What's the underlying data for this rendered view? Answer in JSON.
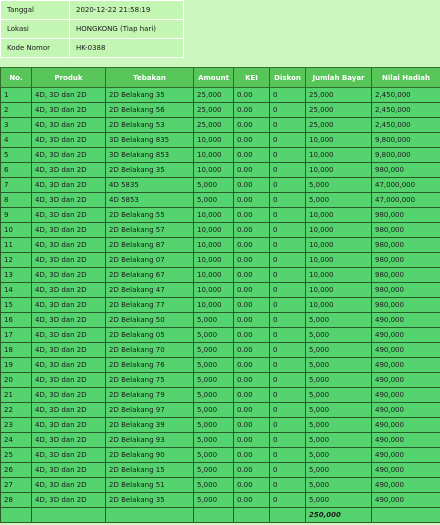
{
  "info": [
    {
      "label": "Tanggal",
      "value": "2020-12-22 21:58:19"
    },
    {
      "label": "Lokasi",
      "value": "HONGKONG (Tiap hari)"
    },
    {
      "label": "Kode Nomor",
      "value": "HK-0388"
    }
  ],
  "table": {
    "headers": [
      "No.",
      "Produk",
      "Tebakan",
      "Amount",
      "KEI",
      "Diskon",
      "Jumlah Bayar",
      "Nilai Hadiah"
    ],
    "rows": [
      [
        "1",
        "4D, 3D dan 2D",
        "2D Belakang 35",
        "25,000",
        "0.00",
        "0",
        "25,000",
        "2,450,000"
      ],
      [
        "2",
        "4D, 3D dan 2D",
        "2D Belakang 56",
        "25,000",
        "0.00",
        "0",
        "25,000",
        "2,450,000"
      ],
      [
        "3",
        "4D, 3D dan 2D",
        "2D Belakang 53",
        "25,000",
        "0.00",
        "0",
        "25,000",
        "2,450,000"
      ],
      [
        "4",
        "4D, 3D dan 2D",
        "3D Belakang 835",
        "10,000",
        "0.00",
        "0",
        "10,000",
        "9,800,000"
      ],
      [
        "5",
        "4D, 3D dan 2D",
        "3D Belakang 853",
        "10,000",
        "0.00",
        "0",
        "10,000",
        "9,800,000"
      ],
      [
        "6",
        "4D, 3D dan 2D",
        "2D Belakang 35",
        "10,000",
        "0.00",
        "0",
        "10,000",
        "980,000"
      ],
      [
        "7",
        "4D, 3D dan 2D",
        "4D 5835",
        "5,000",
        "0.00",
        "0",
        "5,000",
        "47,000,000"
      ],
      [
        "8",
        "4D, 3D dan 2D",
        "4D 5853",
        "5,000",
        "0.00",
        "0",
        "5,000",
        "47,000,000"
      ],
      [
        "9",
        "4D, 3D dan 2D",
        "2D Belakang 55",
        "10,000",
        "0.00",
        "0",
        "10,000",
        "980,000"
      ],
      [
        "10",
        "4D, 3D dan 2D",
        "2D Belakang 57",
        "10,000",
        "0.00",
        "0",
        "10,000",
        "980,000"
      ],
      [
        "11",
        "4D, 3D dan 2D",
        "2D Belakang 87",
        "10,000",
        "0.00",
        "0",
        "10,000",
        "980,000"
      ],
      [
        "12",
        "4D, 3D dan 2D",
        "2D Belakang 07",
        "10,000",
        "0.00",
        "0",
        "10,000",
        "980,000"
      ],
      [
        "13",
        "4D, 3D dan 2D",
        "2D Belakang 67",
        "10,000",
        "0.00",
        "0",
        "10,000",
        "980,000"
      ],
      [
        "14",
        "4D, 3D dan 2D",
        "2D Belakang 47",
        "10,000",
        "0.00",
        "0",
        "10,000",
        "980,000"
      ],
      [
        "15",
        "4D, 3D dan 2D",
        "2D Belakang 77",
        "10,000",
        "0.00",
        "0",
        "10,000",
        "980,000"
      ],
      [
        "16",
        "4D, 3D dan 2D",
        "2D Belakang 50",
        "5,000",
        "0.00",
        "0",
        "5,000",
        "490,000"
      ],
      [
        "17",
        "4D, 3D dan 2D",
        "2D Belakang 05",
        "5,000",
        "0.00",
        "0",
        "5,000",
        "490,000"
      ],
      [
        "18",
        "4D, 3D dan 2D",
        "2D Belakang 70",
        "5,000",
        "0.00",
        "0",
        "5,000",
        "490,000"
      ],
      [
        "19",
        "4D, 3D dan 2D",
        "2D Belakang 76",
        "5,000",
        "0.00",
        "0",
        "5,000",
        "490,000"
      ],
      [
        "20",
        "4D, 3D dan 2D",
        "2D Belakang 75",
        "5,000",
        "0.00",
        "0",
        "5,000",
        "490,000"
      ],
      [
        "21",
        "4D, 3D dan 2D",
        "2D Belakang 79",
        "5,000",
        "0.00",
        "0",
        "5,000",
        "490,000"
      ],
      [
        "22",
        "4D, 3D dan 2D",
        "2D Belakang 97",
        "5,000",
        "0.00",
        "0",
        "5,000",
        "490,000"
      ],
      [
        "23",
        "4D, 3D dan 2D",
        "2D Belakang 39",
        "5,000",
        "0.00",
        "0",
        "5,000",
        "490,000"
      ],
      [
        "24",
        "4D, 3D dan 2D",
        "2D Belakang 93",
        "5,000",
        "0.00",
        "0",
        "5,000",
        "490,000"
      ],
      [
        "25",
        "4D, 3D dan 2D",
        "2D Belakang 90",
        "5,000",
        "0.00",
        "0",
        "5,000",
        "490,000"
      ],
      [
        "26",
        "4D, 3D dan 2D",
        "2D Belakang 15",
        "5,000",
        "0.00",
        "0",
        "5,000",
        "490,000"
      ],
      [
        "27",
        "4D, 3D dan 2D",
        "2D Belakang 51",
        "5,000",
        "0.00",
        "0",
        "5,000",
        "490,000"
      ],
      [
        "28",
        "4D, 3D dan 2D",
        "2D Belakang 35",
        "5,000",
        "0.00",
        "0",
        "5,000",
        "490,000"
      ]
    ],
    "total": "250,000"
  }
}
